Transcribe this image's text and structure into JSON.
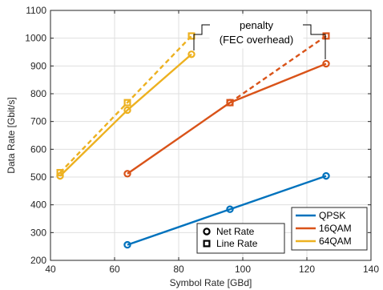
{
  "chart_data": {
    "type": "line",
    "xlabel": "Symbol Rate [GBd]",
    "ylabel": "Data Rate [Gbit/s]",
    "xlim": [
      40,
      140
    ],
    "ylim": [
      200,
      1100
    ],
    "xticks": [
      40,
      60,
      80,
      100,
      120,
      140
    ],
    "yticks": [
      200,
      300,
      400,
      500,
      600,
      700,
      800,
      900,
      1000,
      1100
    ],
    "grid": true,
    "series": [
      {
        "name": "QPSK",
        "color": "#0072BD",
        "kind": "net",
        "line": "solid",
        "marker": "circle",
        "points": [
          [
            64,
            256
          ],
          [
            96,
            384
          ],
          [
            126,
            504
          ]
        ]
      },
      {
        "name": "16QAM",
        "color": "#D95319",
        "kind": "net",
        "line": "solid",
        "marker": "circle",
        "points": [
          [
            64,
            512
          ],
          [
            96,
            768
          ],
          [
            126,
            908
          ]
        ]
      },
      {
        "name": "16QAM",
        "color": "#D95319",
        "kind": "line",
        "line": "dashed",
        "marker": "square",
        "points": [
          [
            96,
            768
          ],
          [
            126,
            1008
          ]
        ]
      },
      {
        "name": "64QAM",
        "color": "#EDB120",
        "kind": "net",
        "line": "solid",
        "marker": "circle",
        "points": [
          [
            43,
            504
          ],
          [
            64,
            741
          ],
          [
            84,
            942
          ]
        ]
      },
      {
        "name": "64QAM",
        "color": "#EDB120",
        "kind": "line",
        "line": "dashed",
        "marker": "square",
        "points": [
          [
            43,
            516
          ],
          [
            64,
            768
          ],
          [
            84,
            1008
          ]
        ]
      }
    ],
    "legend_color": {
      "position": "bottom-right",
      "entries": [
        "QPSK",
        "16QAM",
        "64QAM"
      ]
    },
    "legend_marker": {
      "entries": [
        {
          "marker": "circle",
          "label": "Net Rate"
        },
        {
          "marker": "square",
          "label": "Line Rate"
        }
      ]
    },
    "annotation": {
      "text_line1": "penalty",
      "text_line2": "(FEC overhead)"
    }
  }
}
